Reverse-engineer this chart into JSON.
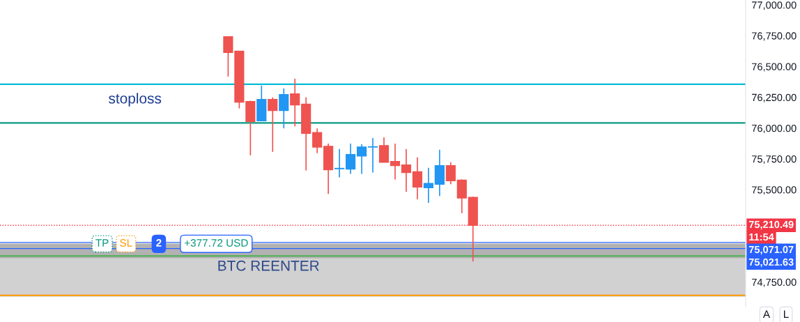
{
  "chart_data": {
    "type": "candlestick",
    "categories": [
      null,
      null,
      null,
      null,
      null,
      null,
      null,
      null,
      null,
      null,
      null,
      null,
      null,
      null,
      null,
      null,
      null,
      null,
      null,
      null,
      null,
      null,
      null,
      null,
      null,
      null,
      null,
      null,
      null,
      null,
      null,
      null,
      null,
      null,
      null,
      null,
      null,
      null,
      null,
      null,
      null,
      null,
      null,
      null,
      null,
      null,
      null,
      null,
      null,
      null,
      null,
      null,
      null,
      null,
      null,
      null,
      null,
      null,
      null,
      null,
      null,
      null,
      null,
      null,
      null,
      null,
      null
    ],
    "ohlc": [
      null,
      null,
      null,
      null,
      null,
      null,
      null,
      null,
      null,
      null,
      null,
      null,
      null,
      null,
      null,
      null,
      null,
      null,
      null,
      null,
      [
        76742,
        76742,
        76418,
        76614
      ],
      [
        76625,
        76625,
        76160,
        76210
      ],
      [
        76216,
        76222,
        75779,
        76054
      ],
      [
        76059,
        76345,
        76059,
        76233
      ],
      [
        76233,
        76250,
        75807,
        76143
      ],
      [
        76143,
        76322,
        75998,
        76272
      ],
      [
        76278,
        76401,
        76014,
        76188
      ],
      [
        76194,
        76250,
        75656,
        75958
      ],
      [
        75964,
        75998,
        75796,
        75846
      ],
      [
        75852,
        75874,
        75466,
        75662
      ],
      [
        75670,
        75830,
        75600,
        75673
      ],
      [
        75667,
        75874,
        75628,
        75785
      ],
      [
        75774,
        75869,
        75628,
        75846
      ],
      [
        75846,
        75919,
        75639,
        75848
      ],
      [
        75858,
        75925,
        75723,
        75723
      ],
      [
        75729,
        75874,
        75583,
        75695
      ],
      [
        75701,
        75830,
        75482,
        75639
      ],
      [
        75645,
        75762,
        75421,
        75522
      ],
      [
        75516,
        75678,
        75393,
        75550
      ],
      [
        75544,
        75824,
        75449,
        75695
      ],
      [
        75695,
        75723,
        75544,
        75572
      ],
      [
        75578,
        75583,
        75309,
        75432
      ],
      [
        75438,
        75443,
        74917,
        75210.49
      ],
      null,
      null,
      null,
      null,
      null,
      null,
      null,
      null,
      null,
      null,
      null,
      null,
      null,
      null,
      null,
      null,
      null,
      null,
      null,
      null,
      null,
      null,
      null,
      null
    ],
    "colors": [
      null,
      null,
      null,
      null,
      null,
      null,
      null,
      null,
      null,
      null,
      null,
      null,
      null,
      null,
      null,
      null,
      null,
      null,
      null,
      null,
      "#ef5350",
      "#ef5350",
      "#ef5350",
      "#2196f3",
      "#ef5350",
      "#2196f3",
      "#ef5350",
      "#ef5350",
      "#ef5350",
      "#ef5350",
      "#2196f3",
      "#2196f3",
      "#2196f3",
      "#2196f3",
      "#ef5350",
      "#ef5350",
      "#ef5350",
      "#ef5350",
      "#2196f3",
      "#2196f3",
      "#ef5350",
      "#ef5350",
      "#ef5350",
      null,
      null,
      null,
      null,
      null,
      null,
      null,
      null,
      null,
      null,
      null,
      null,
      null,
      null,
      null,
      null,
      null,
      null,
      null,
      null,
      null,
      null,
      null,
      null
    ],
    "ylim": [
      74550,
      77040
    ],
    "yticks": [
      {
        "value": 74750,
        "label": "74,750.00"
      },
      {
        "value": 75500,
        "label": "75,500.00"
      },
      {
        "value": 75750,
        "label": "75,750.00"
      },
      {
        "value": 76000,
        "label": "76,000.00"
      },
      {
        "value": 76250,
        "label": "76,250.00"
      },
      {
        "value": 76500,
        "label": "76,500.00"
      },
      {
        "value": 76750,
        "label": "76,750.00"
      },
      {
        "value": 77000,
        "label": "77,000.00"
      }
    ],
    "ref_lines": [
      {
        "axis": "y",
        "value": 76356,
        "color": "#00bcd4",
        "line_style": "solid"
      },
      {
        "axis": "y",
        "value": 76042,
        "color": "#089981",
        "line_style": "solid"
      },
      {
        "axis": "y",
        "value": 75210.49,
        "label": "75,210.49",
        "color": "#f23645",
        "line_style": "dotted"
      },
      {
        "axis": "y",
        "value": 75071.07,
        "label": "75,071.07",
        "color": "#2962ff",
        "line_style": "solid"
      },
      {
        "axis": "y",
        "value": 75021.63,
        "label": "75,021.63",
        "color": "#2962ff",
        "line_style": "solid"
      },
      {
        "axis": "y",
        "value": 74962,
        "color": "#4caf50",
        "line_style": "solid"
      },
      {
        "axis": "y",
        "value": 74642,
        "color": "#ff9800",
        "line_style": "solid"
      }
    ],
    "bands": [
      {
        "axis": "y",
        "from": 74630,
        "to": 74995,
        "label": "BTC REENTER",
        "color": "#d1d1d1"
      },
      {
        "axis": "y",
        "from": 74944,
        "to": 75062,
        "color": "#b2b2b2"
      }
    ],
    "annotations": [
      "stoploss",
      "TP",
      "SL",
      "2",
      "+377.72 USD",
      "11:54",
      "A",
      "L"
    ],
    "grid": false
  }
}
